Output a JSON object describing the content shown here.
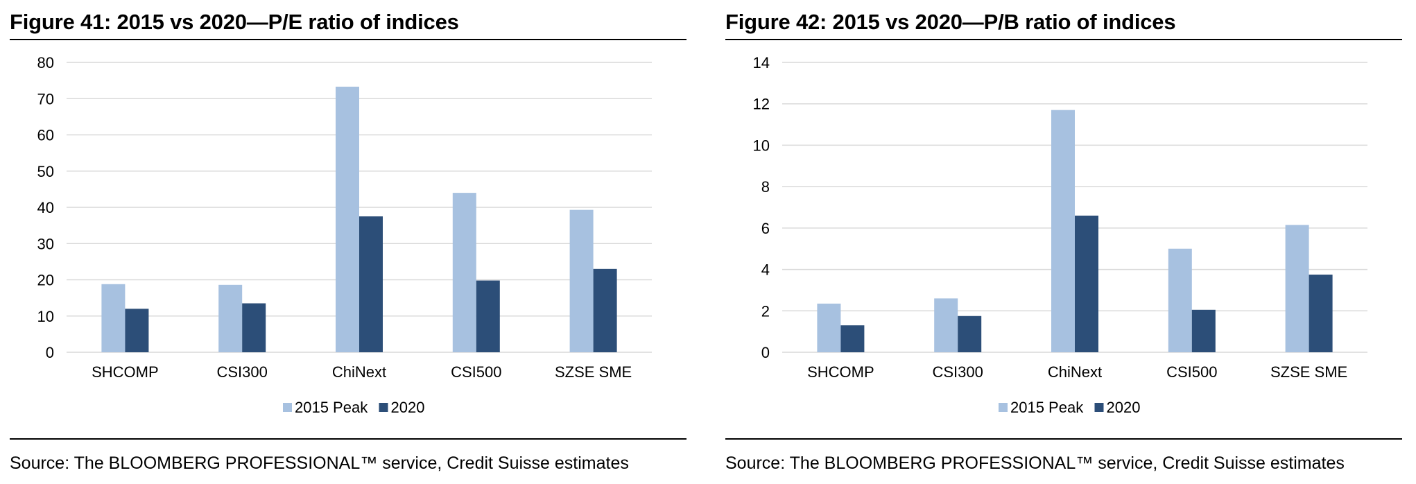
{
  "figures": [
    {
      "title": "Figure 41: 2015 vs 2020—P/E ratio of indices",
      "source": "Source: The BLOOMBERG PROFESSIONAL™ service, Credit Suisse estimates"
    },
    {
      "title": "Figure 42: 2015 vs 2020—P/B ratio of indices",
      "source": "Source: The BLOOMBERG PROFESSIONAL™ service, Credit Suisse estimates"
    }
  ],
  "colors": {
    "peak2015": "#a7c1e0",
    "y2020": "#2c4e78",
    "grid": "#d9d9d9"
  },
  "chart_data": [
    {
      "type": "bar",
      "title": "Figure 41: 2015 vs 2020—P/E ratio of indices",
      "categories": [
        "SHCOMP",
        "CSI300",
        "ChiNext",
        "CSI500",
        "SZSE SME"
      ],
      "series": [
        {
          "name": "2015 Peak",
          "values": [
            18.8,
            18.6,
            73.3,
            44.0,
            39.3
          ]
        },
        {
          "name": "2020",
          "values": [
            12.0,
            13.5,
            37.5,
            19.8,
            23.0
          ]
        }
      ],
      "ylim": [
        0,
        80
      ],
      "yticks": [
        0,
        10,
        20,
        30,
        40,
        50,
        60,
        70,
        80
      ],
      "grid": true,
      "legend": "bottom"
    },
    {
      "type": "bar",
      "title": "Figure 42: 2015 vs 2020—P/B ratio of indices",
      "categories": [
        "SHCOMP",
        "CSI300",
        "ChiNext",
        "CSI500",
        "SZSE SME"
      ],
      "series": [
        {
          "name": "2015 Peak",
          "values": [
            2.35,
            2.6,
            11.7,
            5.0,
            6.15
          ]
        },
        {
          "name": "2020",
          "values": [
            1.3,
            1.75,
            6.6,
            2.05,
            3.75
          ]
        }
      ],
      "ylim": [
        0,
        14
      ],
      "yticks": [
        0,
        2,
        4,
        6,
        8,
        10,
        12,
        14
      ],
      "grid": true,
      "legend": "bottom"
    }
  ]
}
